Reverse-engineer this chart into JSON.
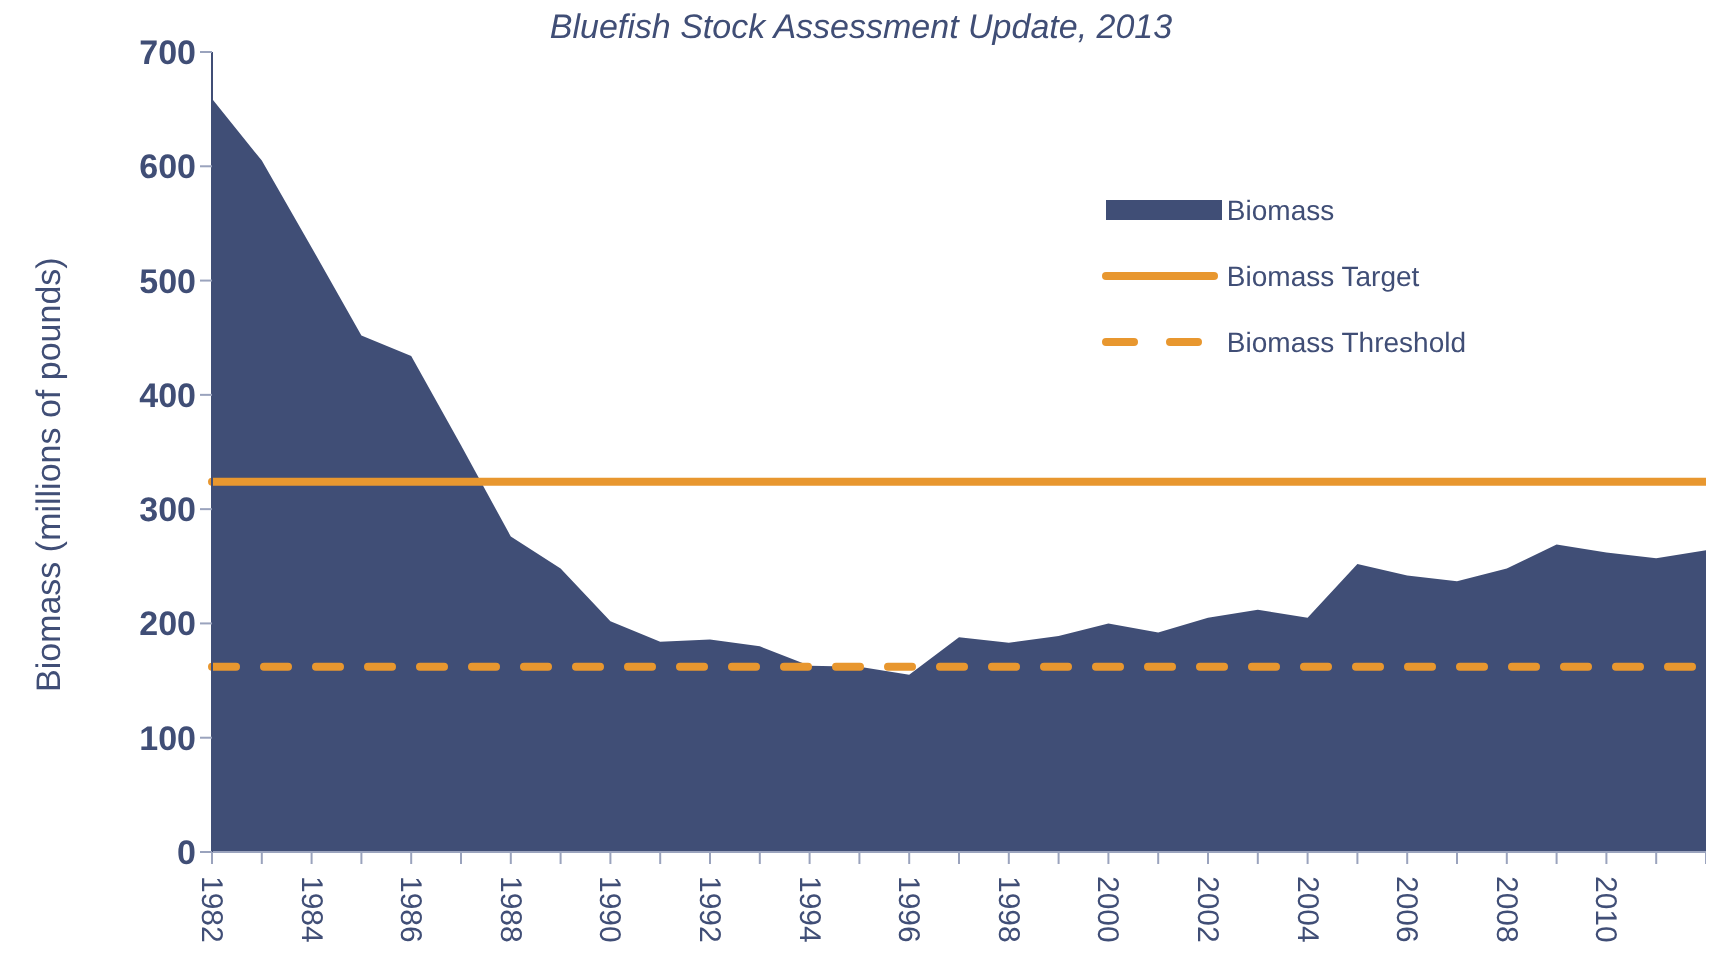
{
  "chart_data": {
    "type": "area",
    "title": "Bluefish Stock Assessment Update, 2013",
    "ylabel": "Biomass (millions of pounds)",
    "categories": [
      "1982",
      null,
      "1984",
      null,
      "1986",
      null,
      "1988",
      null,
      "1990",
      null,
      "1992",
      null,
      "1994",
      null,
      "1996",
      null,
      "1998",
      null,
      "2000",
      null,
      "2002",
      null,
      "2004",
      null,
      "2006",
      null,
      "2008",
      null,
      "2010",
      null,
      null
    ],
    "series": [
      {
        "name": "Biomass",
        "color": "#404e76",
        "values": [
          659,
          605,
          529,
          452,
          434,
          356,
          276,
          248,
          202,
          184,
          186,
          180,
          163,
          162,
          155,
          188,
          183,
          189,
          200,
          192,
          205,
          212,
          205,
          252,
          242,
          237,
          248,
          269,
          262,
          257,
          264
        ]
      }
    ],
    "ref_lines": [
      {
        "axis": "y",
        "value": 324,
        "label": "Biomass Target",
        "color": "#e8972f",
        "line_style": "solid"
      },
      {
        "axis": "y",
        "value": 162,
        "label": "Biomass Threshold",
        "color": "#e8972f",
        "line_style": "dashed"
      }
    ],
    "ylim": [
      0,
      700
    ],
    "yticks": [
      0,
      100,
      200,
      300,
      400,
      500,
      600,
      700
    ],
    "grid": false,
    "legend": "top right"
  }
}
